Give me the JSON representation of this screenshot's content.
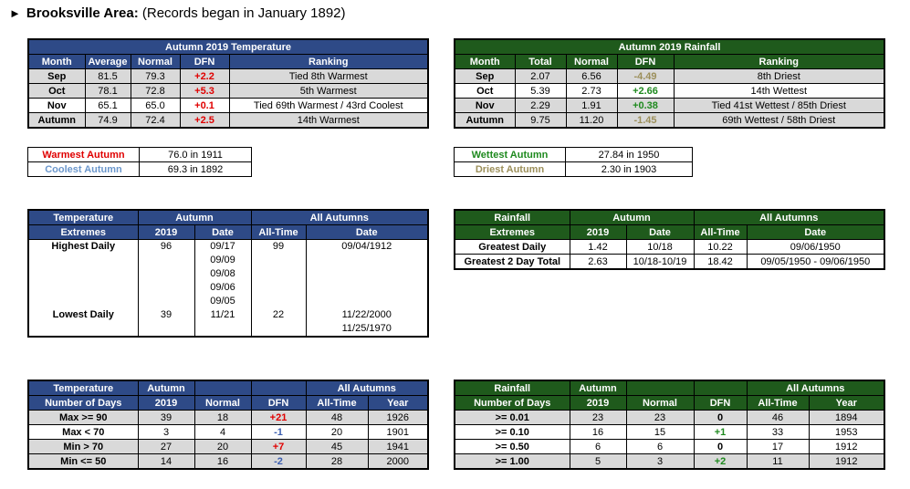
{
  "header": {
    "arrow": "►",
    "place": "Brooksville Area:",
    "note": "(Records began in January 1892)"
  },
  "temp": {
    "title": "Autumn 2019 Temperature",
    "cols": [
      "Month",
      "Average",
      "Normal",
      "DFN",
      "Ranking"
    ],
    "rows": [
      {
        "m": "Sep",
        "avg": "81.5",
        "norm": "79.3",
        "dfn": "+2.2",
        "rank": "Tied 8th Warmest"
      },
      {
        "m": "Oct",
        "avg": "78.1",
        "norm": "72.8",
        "dfn": "+5.3",
        "rank": "5th Warmest"
      },
      {
        "m": "Nov",
        "avg": "65.1",
        "norm": "65.0",
        "dfn": "+0.1",
        "rank": "Tied 69th Warmest / 43rd Coolest"
      },
      {
        "m": "Autumn",
        "avg": "74.9",
        "norm": "72.4",
        "dfn": "+2.5",
        "rank": "14th Warmest"
      }
    ]
  },
  "rain": {
    "title": "Autumn 2019 Rainfall",
    "cols": [
      "Month",
      "Total",
      "Normal",
      "DFN",
      "Ranking"
    ],
    "rows": [
      {
        "m": "Sep",
        "tot": "2.07",
        "norm": "6.56",
        "dfn": "-4.49",
        "rank": "8th Driest"
      },
      {
        "m": "Oct",
        "tot": "5.39",
        "norm": "2.73",
        "dfn": "+2.66",
        "rank": "14th Wettest"
      },
      {
        "m": "Nov",
        "tot": "2.29",
        "norm": "1.91",
        "dfn": "+0.38",
        "rank": "Tied 41st Wettest / 85th Driest"
      },
      {
        "m": "Autumn",
        "tot": "9.75",
        "norm": "11.20",
        "dfn": "-1.45",
        "rank": "69th Wettest / 58th Driest"
      }
    ]
  },
  "temp_records": {
    "warm_label": "Warmest Autumn",
    "warm_val": "76.0 in 1911",
    "cool_label": "Coolest Autumn",
    "cool_val": "69.3 in 1892"
  },
  "rain_records": {
    "wet_label": "Wettest Autumn",
    "wet_val": "27.84 in 1950",
    "dry_label": "Driest Autumn",
    "dry_val": "2.30 in 1903"
  },
  "temp_ext": {
    "h1": "Temperature",
    "h2": "Extremes",
    "autumn": "Autumn",
    "all": "All Autumns",
    "c2019": "2019",
    "cdate": "Date",
    "call": "All-Time",
    "cdate2": "Date",
    "high_label": "Highest Daily",
    "high_val": "96",
    "high_dates": [
      "09/17",
      "09/09",
      "09/08",
      "09/06",
      "09/05"
    ],
    "high_all": "99",
    "high_all_date": "09/04/1912",
    "low_label": "Lowest Daily",
    "low_val": "39",
    "low_date": "11/21",
    "low_all": "22",
    "low_all_dates": [
      "11/22/2000",
      "11/25/1970"
    ]
  },
  "rain_ext": {
    "h1": "Rainfall",
    "h2": "Extremes",
    "autumn": "Autumn",
    "all": "All Autumns",
    "c2019": "2019",
    "cdate": "Date",
    "call": "All-Time",
    "cdate2": "Date",
    "rows": [
      {
        "l": "Greatest Daily",
        "v": "1.42",
        "d": "10/18",
        "a": "10.22",
        "ad": "09/06/1950"
      },
      {
        "l": "Greatest 2 Day Total",
        "v": "2.63",
        "d": "10/18-10/19",
        "a": "18.42",
        "ad": "09/05/1950 - 09/06/1950"
      }
    ]
  },
  "temp_days": {
    "h1": "Temperature",
    "h2": "Number of Days",
    "autumn": "Autumn",
    "c2019": "2019",
    "normal": "Normal",
    "dfn": "DFN",
    "all": "All Autumns",
    "call": "All-Time",
    "year": "Year",
    "rows": [
      {
        "l": "Max >= 90",
        "v": "39",
        "n": "18",
        "d": "+21",
        "a": "48",
        "y": "1926"
      },
      {
        "l": "Max < 70",
        "v": "3",
        "n": "4",
        "d": "-1",
        "a": "20",
        "y": "1901"
      },
      {
        "l": "Min > 70",
        "v": "27",
        "n": "20",
        "d": "+7",
        "a": "45",
        "y": "1941"
      },
      {
        "l": "Min <= 50",
        "v": "14",
        "n": "16",
        "d": "-2",
        "a": "28",
        "y": "2000"
      }
    ]
  },
  "rain_days": {
    "h1": "Rainfall",
    "h2": "Number of Days",
    "autumn": "Autumn",
    "c2019": "2019",
    "normal": "Normal",
    "dfn": "DFN",
    "all": "All Autumns",
    "call": "All-Time",
    "year": "Year",
    "rows": [
      {
        "l": ">= 0.01",
        "v": "23",
        "n": "23",
        "d": "0",
        "a": "46",
        "y": "1894"
      },
      {
        "l": ">= 0.10",
        "v": "16",
        "n": "15",
        "d": "+1",
        "a": "33",
        "y": "1953"
      },
      {
        "l": ">= 0.50",
        "v": "6",
        "n": "6",
        "d": "0",
        "a": "17",
        "y": "1912"
      },
      {
        "l": ">= 1.00",
        "v": "5",
        "n": "3",
        "d": "+2",
        "a": "11",
        "y": "1912"
      }
    ]
  }
}
